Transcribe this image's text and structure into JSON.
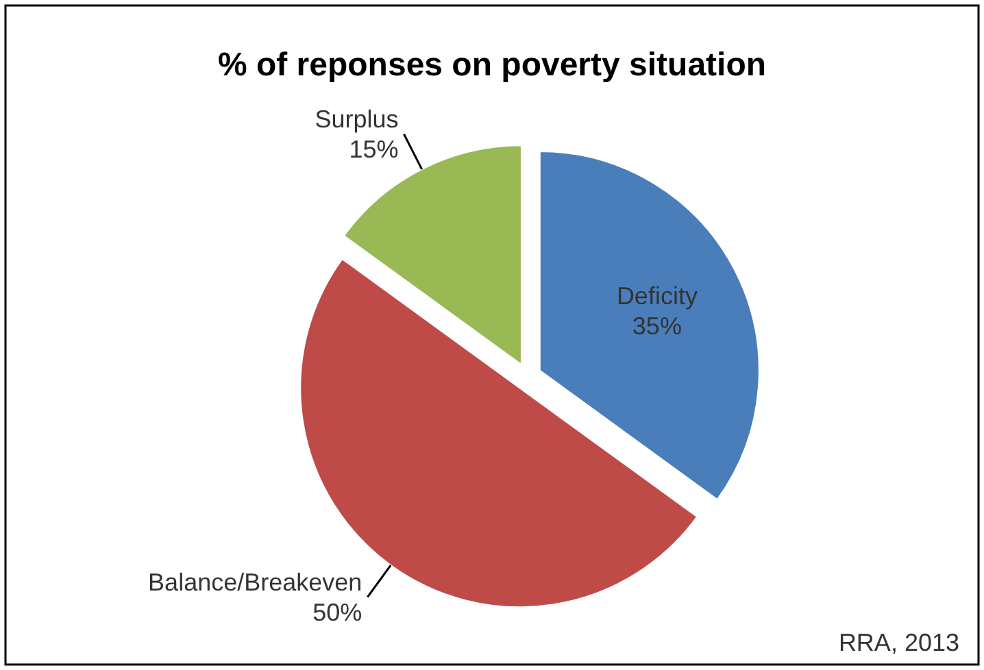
{
  "chart_data": {
    "type": "pie",
    "title": "% of reponses on poverty situation",
    "categories": [
      "Deficity",
      "Balance/Breakeven",
      "Surplus"
    ],
    "values": [
      35,
      50,
      15
    ],
    "value_labels": [
      "35%",
      "50%",
      "15%"
    ],
    "colors": [
      "#4a7ebb",
      "#be4b48",
      "#98b954"
    ],
    "annotations": [
      "RRA, 2013"
    ]
  }
}
